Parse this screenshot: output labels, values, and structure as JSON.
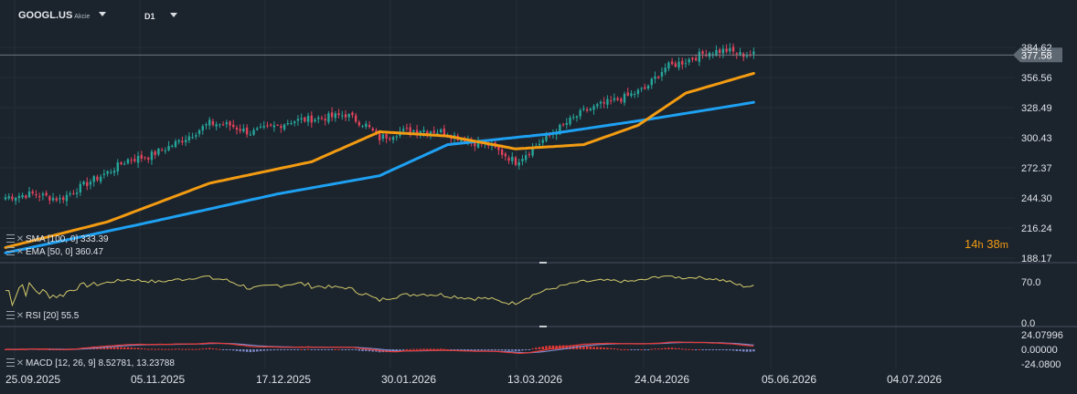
{
  "header": {
    "symbol": "GOOGL.US",
    "symbol_type": "Akcie",
    "timeframe": "D1"
  },
  "indicators": {
    "sma": "SMA [100, 0] 333.39",
    "ema": "EMA [50, 0] 360.47",
    "rsi": "RSI [20] 55.5",
    "macd": "MACD [12, 26, 9] 8.52781, 13.23788"
  },
  "timer": {
    "hours": "14",
    "h_unit": "h",
    "minutes": "38",
    "m_unit": "m"
  },
  "colors": {
    "up": "#26a69a",
    "down": "#e0435a",
    "sma": "#1ea1f2",
    "ema": "#f39c12",
    "rsi": "#d4cc6a",
    "macd": "#e53935",
    "signal": "#7e89c8",
    "bg": "#1b232d"
  },
  "chart_data": {
    "type": "line",
    "x_labels": [
      "25.09.2025",
      "05.11.2025",
      "17.12.2025",
      "30.01.2026",
      "13.03.2026",
      "24.04.2026",
      "05.06.2026",
      "04.07.2026"
    ],
    "price_axis": {
      "ticks": [
        "384.62",
        "356.56",
        "328.49",
        "300.43",
        "272.37",
        "244.30",
        "216.24",
        "188.17"
      ],
      "ylim": [
        188.17,
        384.62
      ],
      "current_price": "377.58"
    },
    "rsi_axis": {
      "ticks": [
        "70.0",
        "0.0"
      ]
    },
    "macd_axis": {
      "ticks": [
        "24.07996",
        "0.00000",
        "-24.0800"
      ]
    },
    "close_anchors": [
      [
        0,
        245
      ],
      [
        8,
        248
      ],
      [
        16,
        243
      ],
      [
        24,
        258
      ],
      [
        30,
        268
      ],
      [
        36,
        280
      ],
      [
        42,
        283
      ],
      [
        48,
        292
      ],
      [
        54,
        302
      ],
      [
        60,
        314
      ],
      [
        66,
        312
      ],
      [
        72,
        305
      ],
      [
        78,
        310
      ],
      [
        84,
        316
      ],
      [
        90,
        318
      ],
      [
        96,
        320
      ],
      [
        100,
        322
      ],
      [
        106,
        312
      ],
      [
        110,
        300
      ],
      [
        116,
        306
      ],
      [
        122,
        308
      ],
      [
        128,
        306
      ],
      [
        134,
        300
      ],
      [
        138,
        296
      ],
      [
        142,
        294
      ],
      [
        148,
        282
      ],
      [
        150,
        278
      ],
      [
        154,
        288
      ],
      [
        158,
        298
      ],
      [
        164,
        312
      ],
      [
        170,
        325
      ],
      [
        176,
        332
      ],
      [
        182,
        338
      ],
      [
        188,
        346
      ],
      [
        194,
        366
      ],
      [
        200,
        372
      ],
      [
        206,
        380
      ],
      [
        212,
        382
      ],
      [
        216,
        378
      ],
      [
        220,
        378
      ]
    ],
    "series": [
      {
        "name": "SMA [100, 0]",
        "values": [
          [
            0,
            193
          ],
          [
            40,
            220
          ],
          [
            80,
            248
          ],
          [
            110,
            265
          ],
          [
            130,
            294
          ],
          [
            160,
            304
          ],
          [
            190,
            318
          ],
          [
            220,
            333.39
          ]
        ]
      },
      {
        "name": "EMA [50, 0]",
        "values": [
          [
            0,
            198
          ],
          [
            30,
            222
          ],
          [
            60,
            258
          ],
          [
            90,
            278
          ],
          [
            110,
            306
          ],
          [
            130,
            302
          ],
          [
            150,
            290
          ],
          [
            170,
            294
          ],
          [
            186,
            312
          ],
          [
            200,
            342
          ],
          [
            220,
            360.47
          ]
        ]
      }
    ]
  }
}
